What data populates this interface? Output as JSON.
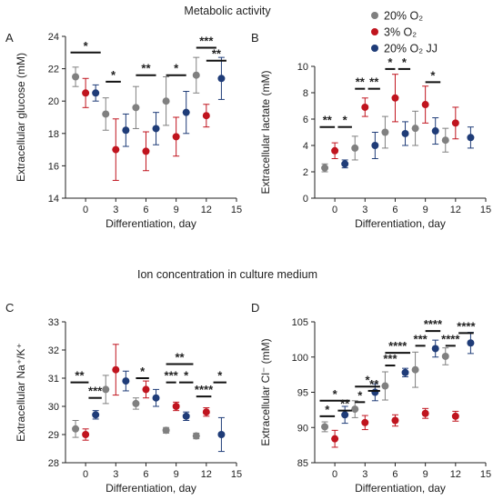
{
  "figure": {
    "section_titles": [
      "Metabolic activity",
      "Ion concentration in culture medium"
    ],
    "legend": {
      "placement": "top-right",
      "entries": [
        {
          "label": "20% O₂",
          "color": "#808080"
        },
        {
          "label": "3% O₂",
          "color": "#c0141e"
        },
        {
          "label": "20% O₂ JJ",
          "color": "#1f3c78"
        }
      ]
    }
  },
  "chart_data": [
    {
      "panel_label": "A",
      "type": "scatter",
      "xlabel": "Differentiation, day",
      "ylabel": "Extracellular glucose (mM)",
      "xlim": [
        -2,
        15
      ],
      "ylim": [
        14,
        24
      ],
      "xticks": [
        0,
        3,
        6,
        9,
        12,
        15
      ],
      "yticks": [
        14,
        16,
        18,
        20,
        22,
        24
      ],
      "series": [
        {
          "name": "20% O₂",
          "color": "#808080",
          "x": [
            -1,
            2,
            5,
            8,
            11
          ],
          "y": [
            21.5,
            19.2,
            19.6,
            20.0,
            21.6
          ],
          "err": [
            0.6,
            1.0,
            1.3,
            1.5,
            1.1
          ]
        },
        {
          "name": "3% O₂",
          "color": "#c0141e",
          "x": [
            0,
            3,
            6,
            9,
            12
          ],
          "y": [
            20.5,
            17.0,
            16.9,
            17.8,
            19.1
          ],
          "err": [
            0.9,
            1.9,
            1.2,
            1.2,
            0.7
          ]
        },
        {
          "name": "20% O₂ JJ",
          "color": "#1f3c78",
          "x": [
            1,
            4,
            7,
            10,
            13.5
          ],
          "y": [
            20.5,
            18.2,
            18.3,
            19.3,
            21.4
          ],
          "err": [
            0.5,
            1.0,
            1.0,
            1.3,
            1.3
          ]
        }
      ],
      "sig": [
        {
          "label": "*",
          "x1": -1.5,
          "x2": 1.5,
          "y": 23.0
        },
        {
          "label": "*",
          "x1": 2,
          "x2": 3.5,
          "y": 21.2
        },
        {
          "label": "**",
          "x1": 5,
          "x2": 7,
          "y": 21.6
        },
        {
          "label": "*",
          "x1": 8,
          "x2": 10,
          "y": 21.6
        },
        {
          "label": "***",
          "x1": 11,
          "x2": 13,
          "y": 23.3
        },
        {
          "label": "**",
          "x1": 12,
          "x2": 14,
          "y": 22.5
        }
      ]
    },
    {
      "panel_label": "B",
      "type": "scatter",
      "xlabel": "Differentiation, day",
      "ylabel": "Extracellular lactate (mM)",
      "xlim": [
        -2,
        15
      ],
      "ylim": [
        0,
        10
      ],
      "xticks": [
        0,
        3,
        6,
        9,
        12,
        15
      ],
      "yticks": [
        0,
        2,
        4,
        6,
        8,
        10
      ],
      "series": [
        {
          "name": "20% O₂",
          "color": "#808080",
          "x": [
            -1,
            2,
            5,
            8,
            11
          ],
          "y": [
            2.3,
            3.8,
            5.0,
            5.3,
            4.4
          ],
          "err": [
            0.3,
            0.9,
            1.2,
            1.3,
            0.9
          ]
        },
        {
          "name": "3% O₂",
          "color": "#c0141e",
          "x": [
            0,
            3,
            6,
            9,
            12
          ],
          "y": [
            3.6,
            6.9,
            7.6,
            7.1,
            5.7
          ],
          "err": [
            0.6,
            0.7,
            1.8,
            1.4,
            1.2
          ]
        },
        {
          "name": "20% O₂ JJ",
          "color": "#1f3c78",
          "x": [
            1,
            4,
            7,
            10,
            13.5
          ],
          "y": [
            2.6,
            4.0,
            4.9,
            5.1,
            4.6
          ],
          "err": [
            0.3,
            1.0,
            0.9,
            1.0,
            0.8
          ]
        }
      ],
      "sig": [
        {
          "label": "**",
          "x1": -1.5,
          "x2": 0,
          "y": 5.4
        },
        {
          "label": "*",
          "x1": 0.3,
          "x2": 1.7,
          "y": 5.4
        },
        {
          "label": "**",
          "x1": 2,
          "x2": 3,
          "y": 8.3
        },
        {
          "label": "**",
          "x1": 3.3,
          "x2": 4.5,
          "y": 8.3
        },
        {
          "label": "*",
          "x1": 5,
          "x2": 6,
          "y": 9.8
        },
        {
          "label": "*",
          "x1": 6.3,
          "x2": 7.5,
          "y": 9.8
        },
        {
          "label": "*",
          "x1": 9,
          "x2": 10.5,
          "y": 8.8
        }
      ]
    },
    {
      "panel_label": "C",
      "type": "scatter",
      "xlabel": "Differentiation, day",
      "ylabel": "Extracellular Na⁺/K⁺",
      "xlim": [
        -2,
        15
      ],
      "ylim": [
        28,
        33
      ],
      "xticks": [
        0,
        3,
        6,
        9,
        12,
        15
      ],
      "yticks": [
        28,
        29,
        30,
        31,
        32,
        33
      ],
      "series": [
        {
          "name": "20% O₂",
          "color": "#808080",
          "x": [
            -1,
            2,
            5,
            8,
            11
          ],
          "y": [
            29.2,
            30.6,
            30.1,
            29.15,
            28.95
          ],
          "err": [
            0.3,
            0.5,
            0.2,
            0.1,
            0.1
          ]
        },
        {
          "name": "3% O₂",
          "color": "#c0141e",
          "x": [
            0,
            3,
            6,
            9,
            12
          ],
          "y": [
            29.0,
            31.3,
            30.6,
            30.0,
            29.8
          ],
          "err": [
            0.2,
            0.9,
            0.3,
            0.15,
            0.15
          ]
        },
        {
          "name": "20% O₂ JJ",
          "color": "#1f3c78",
          "x": [
            1,
            4,
            7,
            10,
            13.5
          ],
          "y": [
            29.7,
            30.9,
            30.3,
            29.65,
            29.0
          ],
          "err": [
            0.15,
            0.35,
            0.3,
            0.15,
            0.6
          ]
        }
      ],
      "sig": [
        {
          "label": "**",
          "x1": -1.5,
          "x2": 0.3,
          "y": 30.85
        },
        {
          "label": "***",
          "x1": 0.3,
          "x2": 1.6,
          "y": 30.3
        },
        {
          "label": "*",
          "x1": 5,
          "x2": 6.3,
          "y": 31.0
        },
        {
          "label": "**",
          "x1": 8,
          "x2": 10.7,
          "y": 31.5
        },
        {
          "label": "***",
          "x1": 8,
          "x2": 9,
          "y": 30.85
        },
        {
          "label": "*",
          "x1": 9.3,
          "x2": 10.7,
          "y": 30.85
        },
        {
          "label": "****",
          "x1": 11,
          "x2": 12.5,
          "y": 30.35
        },
        {
          "label": "*",
          "x1": 12.7,
          "x2": 14,
          "y": 30.85
        }
      ]
    },
    {
      "panel_label": "D",
      "type": "scatter",
      "xlabel": "Differentiation, day",
      "ylabel": "Extracellular Cl⁻ (mM)",
      "xlim": [
        -2,
        15
      ],
      "ylim": [
        85,
        105
      ],
      "xticks": [
        0,
        3,
        6,
        9,
        12,
        15
      ],
      "yticks": [
        85,
        90,
        95,
        100,
        105
      ],
      "series": [
        {
          "name": "20% O₂",
          "color": "#808080",
          "x": [
            -1,
            2,
            5,
            8,
            11
          ],
          "y": [
            90.1,
            92.6,
            95.9,
            98.2,
            100.1
          ],
          "err": [
            0.7,
            1.2,
            2.0,
            2.5,
            1.2
          ]
        },
        {
          "name": "3% O₂",
          "color": "#c0141e",
          "x": [
            0,
            3,
            6,
            9,
            12
          ],
          "y": [
            88.4,
            90.7,
            91.0,
            92.0,
            91.6
          ],
          "err": [
            1.2,
            1.0,
            0.8,
            0.7,
            0.7
          ]
        },
        {
          "name": "20% O₂ JJ",
          "color": "#1f3c78",
          "x": [
            1,
            4,
            7,
            10,
            13.5
          ],
          "y": [
            91.8,
            95.0,
            97.8,
            101.2,
            102.0
          ],
          "err": [
            1.2,
            1.2,
            0.6,
            1.2,
            1.5
          ]
        }
      ],
      "sig": [
        {
          "label": "*",
          "x1": -1.5,
          "x2": 1.5,
          "y": 93.8
        },
        {
          "label": "*",
          "x1": -1.5,
          "x2": 0,
          "y": 91.6
        },
        {
          "label": "**",
          "x1": 0.3,
          "x2": 1.7,
          "y": 92.4
        },
        {
          "label": "*",
          "x1": 2,
          "x2": 4.5,
          "y": 95.8
        },
        {
          "label": "*",
          "x1": 2,
          "x2": 3,
          "y": 93.6
        },
        {
          "label": "**",
          "x1": 3.3,
          "x2": 4.5,
          "y": 95.2
        },
        {
          "label": "***",
          "x1": 5,
          "x2": 6,
          "y": 98.8
        },
        {
          "label": "****",
          "x1": 5,
          "x2": 7.5,
          "y": 100.6
        },
        {
          "label": "***",
          "x1": 8,
          "x2": 9,
          "y": 101.6
        },
        {
          "label": "****",
          "x1": 9,
          "x2": 10.5,
          "y": 103.7
        },
        {
          "label": "****",
          "x1": 11,
          "x2": 12,
          "y": 101.6
        },
        {
          "label": "****",
          "x1": 12.3,
          "x2": 13.8,
          "y": 103.4
        }
      ]
    }
  ]
}
